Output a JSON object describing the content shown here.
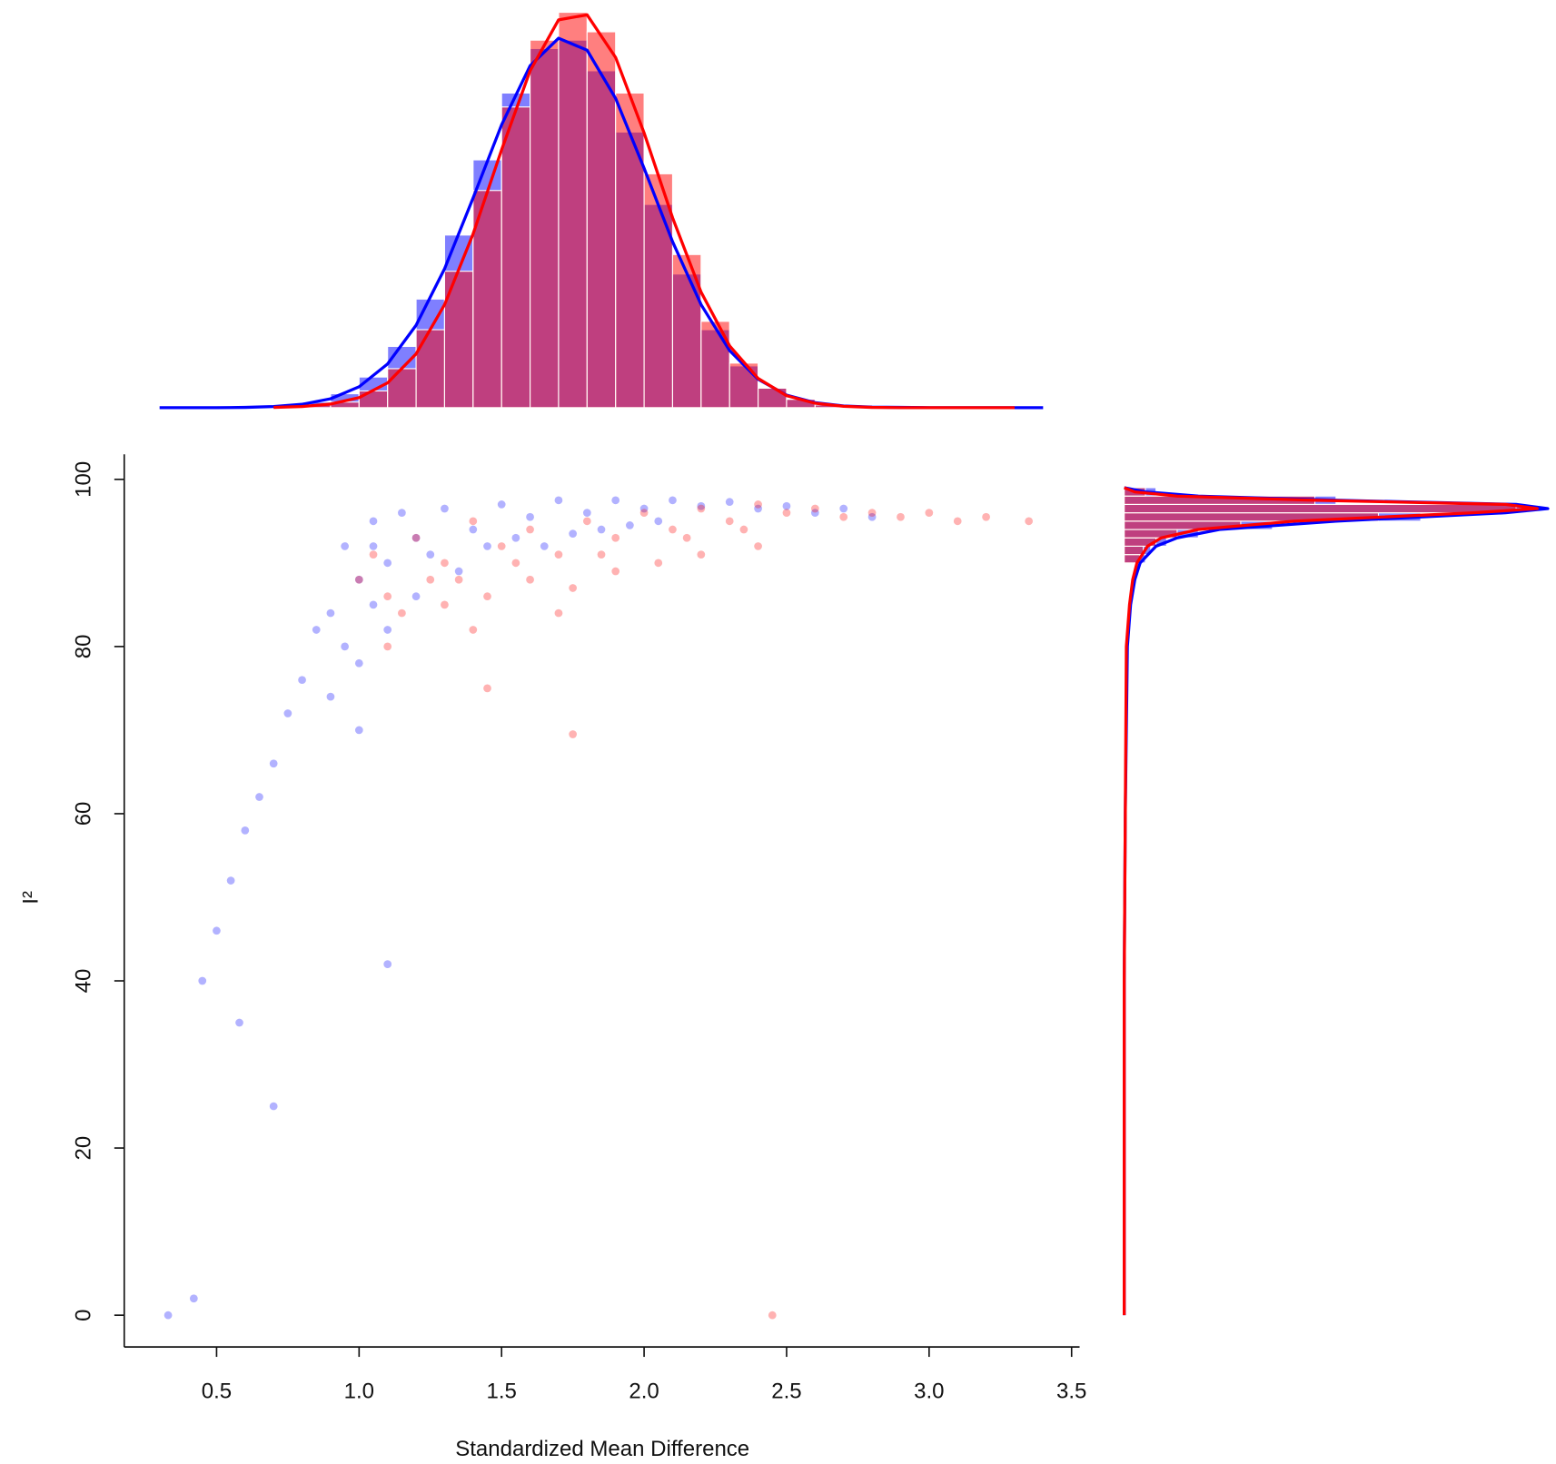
{
  "chart_data": [
    {
      "type": "scatter",
      "xlabel": "Standardized Mean Difference",
      "ylabel": "I²",
      "xlim": [
        0.176,
        3.528
      ],
      "ylim": [
        -3.8,
        103
      ],
      "xticks": [
        0.5,
        {
          "value": 1,
          "label": "1.0"
        },
        1.5,
        {
          "value": 2,
          "label": "2.0"
        },
        2.5,
        {
          "value": 3,
          "label": "3.0"
        },
        3.5
      ],
      "yticks": [
        0,
        20,
        40,
        60,
        80,
        100
      ],
      "series": [
        {
          "color": "#0000ff",
          "alpha": 0.3,
          "x": [
            0.95,
            1.0,
            1.05,
            1.1,
            1.15,
            1.2,
            1.3,
            1.4,
            1.5,
            1.6,
            1.7,
            1.8,
            1.9,
            2.0,
            2.1,
            2.2,
            2.3,
            2.4,
            2.5,
            2.6,
            2.7,
            2.8,
            0.9,
            0.95,
            1.0,
            0.85,
            0.8,
            0.75,
            1.05,
            1.1,
            0.7,
            0.65,
            0.6,
            0.55,
            0.5,
            0.45,
            0.42,
            0.33,
            1.05,
            1.25,
            1.35,
            1.45,
            1.55,
            1.65,
            1.75,
            1.85,
            1.95,
            2.05,
            1.0,
            0.9,
            1.2,
            0.58,
            1.1,
            0.7
          ],
          "values": [
            92,
            88,
            95,
            90,
            96,
            93,
            96.5,
            94,
            97,
            95.5,
            97.5,
            96,
            97.5,
            96.5,
            97.5,
            96.8,
            97.3,
            96.5,
            96.8,
            96,
            96.5,
            95.5,
            84,
            80,
            78,
            82,
            76,
            72,
            85,
            82,
            66,
            62,
            58,
            52,
            46,
            40,
            2,
            0,
            92,
            91,
            89,
            92,
            93,
            92,
            93.5,
            94,
            94.5,
            95,
            70,
            74,
            86,
            35,
            42,
            25
          ]
        },
        {
          "color": "#ff0000",
          "alpha": 0.3,
          "x": [
            1.0,
            1.05,
            1.1,
            1.2,
            1.25,
            1.3,
            1.4,
            1.5,
            1.6,
            1.7,
            1.8,
            1.9,
            2.0,
            2.1,
            2.2,
            2.3,
            2.4,
            2.5,
            2.6,
            2.7,
            2.8,
            2.9,
            3.0,
            3.1,
            3.2,
            3.35,
            1.15,
            1.3,
            1.45,
            1.6,
            1.75,
            1.9,
            2.05,
            2.2,
            2.4,
            1.1,
            1.4,
            1.7,
            1.75,
            1.45,
            2.45,
            1.35,
            1.55,
            1.85,
            2.15,
            2.35
          ],
          "values": [
            88,
            91,
            86,
            93,
            88,
            90,
            95,
            92,
            94,
            91,
            95,
            93,
            96,
            94,
            96.5,
            95,
            97,
            96,
            96.5,
            95.5,
            96,
            95.5,
            96,
            95,
            95.5,
            95,
            84,
            85,
            86,
            88,
            87,
            89,
            90,
            91,
            92,
            80,
            82,
            84,
            69.5,
            75,
            0,
            88,
            90,
            91,
            93,
            94
          ]
        }
      ]
    },
    {
      "type": "histogram",
      "orientation": "vertical",
      "xlim": [
        0.176,
        3.528
      ],
      "ylim": [
        0,
        1.45
      ],
      "histograms": [
        {
          "color": "#0000ff",
          "alpha": 0.5,
          "bins": [
            0.8,
            0.9,
            1.0,
            1.1,
            1.2,
            1.3,
            1.4,
            1.5,
            1.6,
            1.7,
            1.8,
            1.9,
            2.0,
            2.1,
            2.2,
            2.3,
            2.4,
            2.5,
            2.6,
            2.7,
            2.8
          ],
          "values": [
            0.02,
            0.05,
            0.11,
            0.22,
            0.39,
            0.62,
            0.89,
            1.13,
            1.29,
            1.32,
            1.21,
            0.99,
            0.73,
            0.48,
            0.28,
            0.15,
            0.07,
            0.03,
            0.01,
            0
          ]
        },
        {
          "color": "#ff0000",
          "alpha": 0.5,
          "bins": [
            0.8,
            0.9,
            1.0,
            1.1,
            1.2,
            1.3,
            1.4,
            1.5,
            1.6,
            1.7,
            1.8,
            1.9,
            2.0,
            2.1,
            2.2,
            2.3,
            2.4,
            2.5,
            2.6,
            2.7,
            2.8
          ],
          "values": [
            0.01,
            0.02,
            0.06,
            0.14,
            0.28,
            0.49,
            0.78,
            1.08,
            1.32,
            1.42,
            1.35,
            1.13,
            0.84,
            0.55,
            0.31,
            0.16,
            0.07,
            0.03,
            0.01,
            0
          ]
        }
      ],
      "curves": [
        {
          "color": "#0000ff",
          "x": [
            0.3,
            0.4,
            0.5,
            0.6,
            0.7,
            0.8,
            0.9,
            1.0,
            1.1,
            1.2,
            1.3,
            1.4,
            1.5,
            1.6,
            1.7,
            1.8,
            1.9,
            2.0,
            2.1,
            2.2,
            2.3,
            2.4,
            2.5,
            2.6,
            2.7,
            2.8,
            2.9,
            3.0,
            3.1,
            3.2,
            3.3,
            3.4
          ],
          "values": [
            0,
            0,
            0,
            0.001,
            0.004,
            0.012,
            0.032,
            0.075,
            0.157,
            0.296,
            0.499,
            0.753,
            1.016,
            1.228,
            1.327,
            1.284,
            1.111,
            0.86,
            0.596,
            0.37,
            0.205,
            0.102,
            0.045,
            0.018,
            0.006,
            0.002,
            0.001,
            0,
            0,
            0,
            0,
            0
          ]
        },
        {
          "color": "#ff0000",
          "x": [
            0.7,
            0.8,
            0.9,
            1.0,
            1.1,
            1.2,
            1.3,
            1.4,
            1.5,
            1.6,
            1.7,
            1.8,
            1.9,
            2.0,
            2.1,
            2.2,
            2.3,
            2.4,
            2.5,
            2.6,
            2.7,
            2.8,
            2.9,
            3.0,
            3.1,
            3.2,
            3.3
          ],
          "values": [
            0.001,
            0.004,
            0.013,
            0.036,
            0.089,
            0.193,
            0.37,
            0.624,
            0.926,
            1.21,
            1.393,
            1.411,
            1.258,
            0.987,
            0.682,
            0.415,
            0.222,
            0.105,
            0.043,
            0.016,
            0.005,
            0.001,
            0,
            0,
            0,
            0,
            0
          ]
        }
      ]
    },
    {
      "type": "histogram",
      "orientation": "horizontal",
      "xlim": [
        0,
        0.4
      ],
      "ylim": [
        -3.8,
        103
      ],
      "histograms": [
        {
          "color": "#0000ff",
          "alpha": 0.5,
          "bins": [
            90,
            91,
            92,
            93,
            94,
            95,
            96,
            97,
            98,
            99
          ],
          "values": [
            0.02,
            0.025,
            0.04,
            0.07,
            0.14,
            0.28,
            0.38,
            0.2,
            0.03
          ]
        },
        {
          "color": "#ff0000",
          "alpha": 0.5,
          "bins": [
            90,
            91,
            92,
            93,
            94,
            95,
            96,
            97,
            98,
            99
          ],
          "values": [
            0.015,
            0.018,
            0.03,
            0.05,
            0.11,
            0.24,
            0.37,
            0.18,
            0.02
          ]
        }
      ],
      "curves": [
        {
          "color": "#0000ff",
          "y": [
            0,
            20,
            40,
            60,
            80,
            85,
            88,
            90,
            92,
            93,
            94,
            95,
            96,
            96.5,
            97,
            97.5,
            98,
            98.5,
            99
          ],
          "values": [
            0,
            0,
            0,
            0.001,
            0.003,
            0.006,
            0.01,
            0.015,
            0.03,
            0.05,
            0.09,
            0.2,
            0.36,
            0.4,
            0.37,
            0.2,
            0.07,
            0.02,
            0
          ]
        },
        {
          "color": "#ff0000",
          "y": [
            0,
            20,
            40,
            60,
            80,
            85,
            88,
            90,
            92,
            93,
            94,
            95,
            96,
            96.5,
            97,
            97.5,
            98,
            98.5,
            99
          ],
          "values": [
            0,
            0,
            0,
            0.001,
            0.002,
            0.005,
            0.008,
            0.012,
            0.022,
            0.035,
            0.07,
            0.16,
            0.33,
            0.39,
            0.36,
            0.18,
            0.05,
            0.01,
            0
          ]
        }
      ]
    }
  ]
}
